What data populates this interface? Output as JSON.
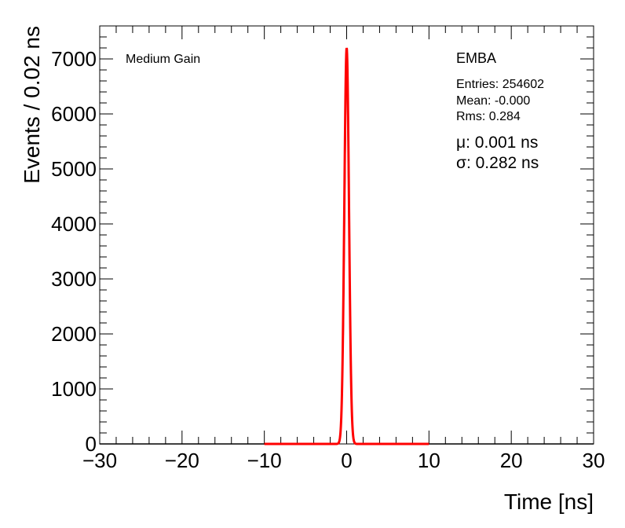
{
  "chart_data": {
    "type": "line",
    "title": "",
    "xlabel": "Time [ns]",
    "ylabel": "Events / 0.02 ns",
    "xlim": [
      -30,
      30
    ],
    "ylim": [
      0,
      7600
    ],
    "x_ticks": [
      -30,
      -20,
      -10,
      0,
      10,
      20,
      30
    ],
    "x_tick_labels": [
      "−30",
      "−20",
      "−10",
      "0",
      "10",
      "20",
      "30"
    ],
    "y_ticks": [
      0,
      1000,
      2000,
      3000,
      4000,
      5000,
      6000,
      7000
    ],
    "y_tick_labels": [
      "0",
      "1000",
      "2000",
      "3000",
      "4000",
      "5000",
      "6000",
      "7000"
    ],
    "grid": false,
    "histogram": {
      "color": "#000000",
      "points": [
        [
          -30,
          0
        ],
        [
          -1.2,
          0
        ],
        [
          -1.0,
          20
        ],
        [
          -0.8,
          120
        ],
        [
          -0.6,
          600
        ],
        [
          -0.4,
          2000
        ],
        [
          -0.2,
          4800
        ],
        [
          -0.1,
          6300
        ],
        [
          0.0,
          7180
        ],
        [
          0.1,
          6500
        ],
        [
          0.2,
          5000
        ],
        [
          0.4,
          2100
        ],
        [
          0.6,
          650
        ],
        [
          0.8,
          130
        ],
        [
          1.0,
          20
        ],
        [
          1.2,
          0
        ],
        [
          30,
          0
        ]
      ]
    },
    "fit": {
      "color": "#ff0000",
      "x_range": [
        -10,
        10
      ],
      "mu": 0.001,
      "sigma": 0.282,
      "amplitude": 7200
    }
  },
  "annotations": {
    "gain": "Medium Gain",
    "partition": "EMBA",
    "entries": "Entries: 254602",
    "mean": "Mean: -0.000",
    "rms": "Rms: 0.284",
    "mu_text": "μ: 0.001 ns",
    "sigma_text": "σ: 0.282 ns"
  }
}
